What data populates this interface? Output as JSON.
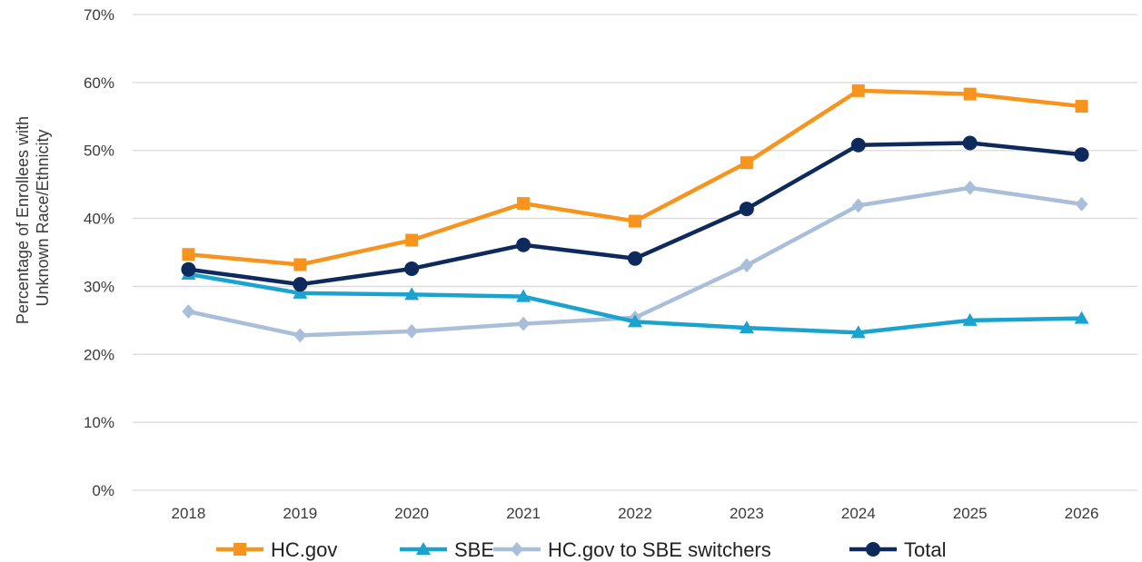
{
  "chart_data": {
    "type": "line",
    "title": "",
    "xlabel": "",
    "ylabel_lines": [
      "Percentage of Enrollees with",
      "Unknown Race/Ethnicity"
    ],
    "categories": [
      "2018",
      "2019",
      "2020",
      "2021",
      "2022",
      "2023",
      "2024",
      "2025",
      "2026"
    ],
    "ylim": [
      0,
      70
    ],
    "yticks": [
      0,
      10,
      20,
      30,
      40,
      50,
      60,
      70
    ],
    "ytick_labels": [
      "0%",
      "10%",
      "20%",
      "30%",
      "40%",
      "50%",
      "60%",
      "70%"
    ],
    "grid": true,
    "legend_position": "bottom",
    "series": [
      {
        "name": "HC.gov",
        "color": "#F7941D",
        "marker": "square",
        "values": [
          34.7,
          33.2,
          36.8,
          42.2,
          39.6,
          48.2,
          58.8,
          58.3,
          56.5
        ]
      },
      {
        "name": "SBE",
        "color": "#1BA3CF",
        "marker": "triangle",
        "values": [
          31.8,
          29.0,
          28.8,
          28.5,
          24.8,
          23.9,
          23.2,
          25.0,
          25.3
        ]
      },
      {
        "name": "HC.gov to SBE switchers",
        "color": "#A9BFD9",
        "marker": "diamond",
        "values": [
          26.3,
          22.8,
          23.4,
          24.5,
          25.4,
          33.1,
          41.9,
          44.5,
          42.1
        ]
      },
      {
        "name": "Total",
        "color": "#0E2A5C",
        "marker": "circle",
        "values": [
          32.5,
          30.3,
          32.6,
          36.1,
          34.1,
          41.4,
          50.8,
          51.1,
          49.4
        ]
      }
    ]
  }
}
